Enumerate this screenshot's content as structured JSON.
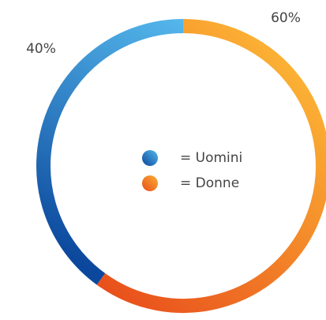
{
  "chart_data": {
    "type": "donut",
    "categories": [
      "= Uomini",
      "= Donne"
    ],
    "values": [
      40,
      60
    ],
    "value_labels": [
      "40%",
      "60%"
    ],
    "colors": [
      [
        "#0b479c",
        "#55b8ec"
      ],
      [
        "#e84e1b",
        "#fbb034"
      ]
    ],
    "direction": "counterclockwise"
  }
}
